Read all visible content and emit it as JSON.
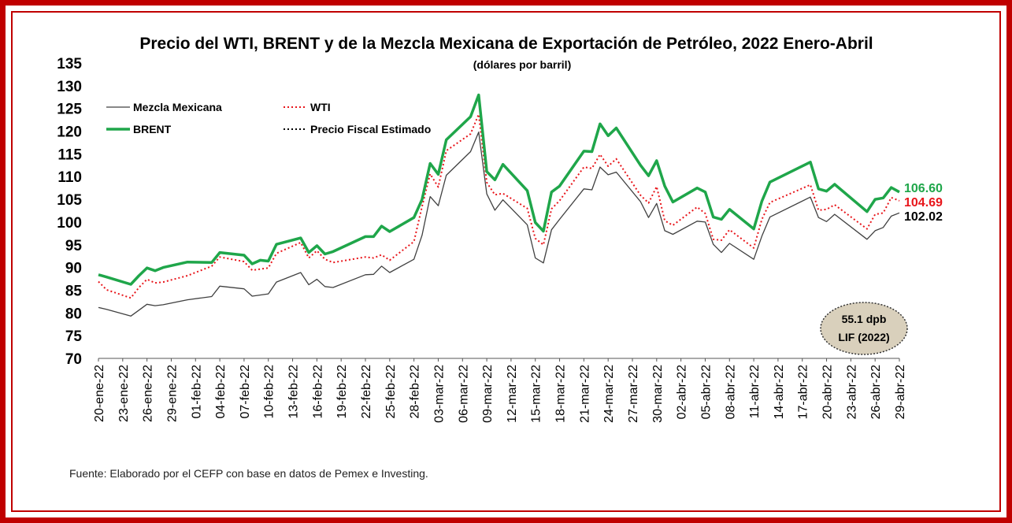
{
  "chart_data": {
    "type": "line",
    "title": "Precio del WTI, BRENT y de la Mezcla Mexicana de Exportación de Petróleo, 2022 Enero-Abril",
    "subtitle": "(dólares por barril)",
    "ylim": [
      70,
      135
    ],
    "yticks": [
      70,
      75,
      80,
      85,
      90,
      95,
      100,
      105,
      110,
      115,
      120,
      125,
      130,
      135
    ],
    "x_tick_labels": [
      "20-ene-22",
      "23-ene-22",
      "26-ene-22",
      "29-ene-22",
      "01-feb-22",
      "04-feb-22",
      "07-feb-22",
      "10-feb-22",
      "13-feb-22",
      "16-feb-22",
      "19-feb-22",
      "22-feb-22",
      "25-feb-22",
      "28-feb-22",
      "03-mar-22",
      "06-mar-22",
      "09-mar-22",
      "12-mar-22",
      "15-mar-22",
      "18-mar-22",
      "21-mar-22",
      "24-mar-22",
      "27-mar-22",
      "30-mar-22",
      "02-abr-22",
      "05-abr-22",
      "08-abr-22",
      "11-abr-22",
      "14-abr-22",
      "17-abr-22",
      "20-abr-22",
      "23-abr-22",
      "26-abr-22",
      "29-abr-22"
    ],
    "x_start": "2022-01-20",
    "x_end": "2022-04-29",
    "grid": false,
    "legend": "top-left",
    "series": [
      {
        "name": "Mezcla Mexicana",
        "color": "#404040",
        "style": "solid",
        "points": [
          [
            "2022-01-20",
            81.2
          ],
          [
            "2022-01-21",
            80.8
          ],
          [
            "2022-01-24",
            79.3
          ],
          [
            "2022-01-25",
            80.6
          ],
          [
            "2022-01-26",
            81.9
          ],
          [
            "2022-01-27",
            81.6
          ],
          [
            "2022-01-28",
            81.8
          ],
          [
            "2022-01-31",
            82.9
          ],
          [
            "2022-02-03",
            83.6
          ],
          [
            "2022-02-04",
            85.9
          ],
          [
            "2022-02-07",
            85.3
          ],
          [
            "2022-02-08",
            83.7
          ],
          [
            "2022-02-10",
            84.2
          ],
          [
            "2022-02-11",
            86.8
          ],
          [
            "2022-02-14",
            88.9
          ],
          [
            "2022-02-15",
            86.2
          ],
          [
            "2022-02-16",
            87.4
          ],
          [
            "2022-02-17",
            85.8
          ],
          [
            "2022-02-18",
            85.6
          ],
          [
            "2022-02-22",
            88.4
          ],
          [
            "2022-02-23",
            88.5
          ],
          [
            "2022-02-24",
            90.3
          ],
          [
            "2022-02-25",
            88.9
          ],
          [
            "2022-02-28",
            91.8
          ],
          [
            "2022-03-01",
            97.1
          ],
          [
            "2022-03-02",
            105.6
          ],
          [
            "2022-03-03",
            103.6
          ],
          [
            "2022-03-04",
            110.3
          ],
          [
            "2022-03-07",
            115.5
          ],
          [
            "2022-03-08",
            119.8
          ],
          [
            "2022-03-09",
            106.2
          ],
          [
            "2022-03-10",
            102.6
          ],
          [
            "2022-03-11",
            104.9
          ],
          [
            "2022-03-14",
            99.4
          ],
          [
            "2022-03-15",
            92.1
          ],
          [
            "2022-03-16",
            91.0
          ],
          [
            "2022-03-17",
            98.3
          ],
          [
            "2022-03-18",
            100.6
          ],
          [
            "2022-03-21",
            107.3
          ],
          [
            "2022-03-22",
            107.1
          ],
          [
            "2022-03-23",
            112.1
          ],
          [
            "2022-03-24",
            110.4
          ],
          [
            "2022-03-25",
            111.0
          ],
          [
            "2022-03-28",
            104.5
          ],
          [
            "2022-03-29",
            101.0
          ],
          [
            "2022-03-30",
            104.1
          ],
          [
            "2022-03-31",
            98.1
          ],
          [
            "2022-04-01",
            97.3
          ],
          [
            "2022-04-04",
            100.2
          ],
          [
            "2022-04-05",
            100.0
          ],
          [
            "2022-04-06",
            95.1
          ],
          [
            "2022-04-07",
            93.3
          ],
          [
            "2022-04-08",
            95.3
          ],
          [
            "2022-04-11",
            91.8
          ],
          [
            "2022-04-12",
            96.9
          ],
          [
            "2022-04-13",
            101.1
          ],
          [
            "2022-04-18",
            105.5
          ],
          [
            "2022-04-19",
            101.0
          ],
          [
            "2022-04-20",
            100.1
          ],
          [
            "2022-04-21",
            101.7
          ],
          [
            "2022-04-25",
            96.2
          ],
          [
            "2022-04-26",
            98.1
          ],
          [
            "2022-04-27",
            98.8
          ],
          [
            "2022-04-28",
            101.3
          ],
          [
            "2022-04-29",
            102.02
          ]
        ]
      },
      {
        "name": "WTI",
        "color": "#e8161b",
        "style": "dotted",
        "points": [
          [
            "2022-01-20",
            86.9
          ],
          [
            "2022-01-21",
            85.1
          ],
          [
            "2022-01-24",
            83.3
          ],
          [
            "2022-01-25",
            85.6
          ],
          [
            "2022-01-26",
            87.4
          ],
          [
            "2022-01-27",
            86.6
          ],
          [
            "2022-01-28",
            86.8
          ],
          [
            "2022-01-31",
            88.2
          ],
          [
            "2022-02-03",
            90.3
          ],
          [
            "2022-02-04",
            92.3
          ],
          [
            "2022-02-07",
            91.3
          ],
          [
            "2022-02-08",
            89.4
          ],
          [
            "2022-02-10",
            89.9
          ],
          [
            "2022-02-11",
            93.1
          ],
          [
            "2022-02-14",
            95.5
          ],
          [
            "2022-02-15",
            92.1
          ],
          [
            "2022-02-16",
            93.7
          ],
          [
            "2022-02-17",
            91.8
          ],
          [
            "2022-02-18",
            91.1
          ],
          [
            "2022-02-22",
            92.3
          ],
          [
            "2022-02-23",
            92.1
          ],
          [
            "2022-02-24",
            92.8
          ],
          [
            "2022-02-25",
            91.6
          ],
          [
            "2022-02-28",
            95.7
          ],
          [
            "2022-03-01",
            103.4
          ],
          [
            "2022-03-02",
            110.6
          ],
          [
            "2022-03-03",
            107.7
          ],
          [
            "2022-03-04",
            115.7
          ],
          [
            "2022-03-07",
            119.4
          ],
          [
            "2022-03-08",
            123.7
          ],
          [
            "2022-03-09",
            108.7
          ],
          [
            "2022-03-10",
            106.0
          ],
          [
            "2022-03-11",
            106.3
          ],
          [
            "2022-03-14",
            103.0
          ],
          [
            "2022-03-15",
            96.4
          ],
          [
            "2022-03-16",
            95.0
          ],
          [
            "2022-03-17",
            102.9
          ],
          [
            "2022-03-18",
            104.7
          ],
          [
            "2022-03-21",
            112.1
          ],
          [
            "2022-03-22",
            111.8
          ],
          [
            "2022-03-23",
            114.9
          ],
          [
            "2022-03-24",
            112.3
          ],
          [
            "2022-03-25",
            113.9
          ],
          [
            "2022-03-28",
            105.9
          ],
          [
            "2022-03-29",
            104.2
          ],
          [
            "2022-03-30",
            107.8
          ],
          [
            "2022-03-31",
            100.3
          ],
          [
            "2022-04-01",
            99.3
          ],
          [
            "2022-04-04",
            103.3
          ],
          [
            "2022-04-05",
            101.9
          ],
          [
            "2022-04-06",
            96.2
          ],
          [
            "2022-04-07",
            96.0
          ],
          [
            "2022-04-08",
            98.3
          ],
          [
            "2022-04-11",
            94.3
          ],
          [
            "2022-04-12",
            100.6
          ],
          [
            "2022-04-13",
            104.3
          ],
          [
            "2022-04-18",
            108.2
          ],
          [
            "2022-04-19",
            102.6
          ],
          [
            "2022-04-20",
            102.8
          ],
          [
            "2022-04-21",
            103.8
          ],
          [
            "2022-04-25",
            98.5
          ],
          [
            "2022-04-26",
            101.7
          ],
          [
            "2022-04-27",
            102.0
          ],
          [
            "2022-04-28",
            105.4
          ],
          [
            "2022-04-29",
            104.69
          ]
        ]
      },
      {
        "name": "BRENT",
        "color": "#1fa64a",
        "style": "solid-thick",
        "points": [
          [
            "2022-01-20",
            88.4
          ],
          [
            "2022-01-21",
            87.9
          ],
          [
            "2022-01-24",
            86.3
          ],
          [
            "2022-01-25",
            88.2
          ],
          [
            "2022-01-26",
            89.9
          ],
          [
            "2022-01-27",
            89.3
          ],
          [
            "2022-01-28",
            90.0
          ],
          [
            "2022-01-31",
            91.2
          ],
          [
            "2022-02-03",
            91.1
          ],
          [
            "2022-02-04",
            93.3
          ],
          [
            "2022-02-07",
            92.7
          ],
          [
            "2022-02-08",
            90.8
          ],
          [
            "2022-02-09",
            91.6
          ],
          [
            "2022-02-10",
            91.4
          ],
          [
            "2022-02-11",
            95.1
          ],
          [
            "2022-02-14",
            96.5
          ],
          [
            "2022-02-15",
            93.3
          ],
          [
            "2022-02-16",
            94.8
          ],
          [
            "2022-02-17",
            92.97
          ],
          [
            "2022-02-18",
            93.5
          ],
          [
            "2022-02-22",
            96.8
          ],
          [
            "2022-02-23",
            96.8
          ],
          [
            "2022-02-24",
            99.1
          ],
          [
            "2022-02-25",
            97.9
          ],
          [
            "2022-02-28",
            100.99
          ],
          [
            "2022-03-01",
            104.97
          ],
          [
            "2022-03-02",
            112.9
          ],
          [
            "2022-03-03",
            110.5
          ],
          [
            "2022-03-04",
            118.1
          ],
          [
            "2022-03-07",
            123.2
          ],
          [
            "2022-03-08",
            127.98
          ],
          [
            "2022-03-09",
            111.1
          ],
          [
            "2022-03-10",
            109.3
          ],
          [
            "2022-03-11",
            112.7
          ],
          [
            "2022-03-14",
            106.9
          ],
          [
            "2022-03-15",
            99.9
          ],
          [
            "2022-03-16",
            98.0
          ],
          [
            "2022-03-17",
            106.6
          ],
          [
            "2022-03-18",
            107.9
          ],
          [
            "2022-03-21",
            115.6
          ],
          [
            "2022-03-22",
            115.5
          ],
          [
            "2022-03-23",
            121.6
          ],
          [
            "2022-03-24",
            119.0
          ],
          [
            "2022-03-25",
            120.7
          ],
          [
            "2022-03-28",
            112.5
          ],
          [
            "2022-03-29",
            110.2
          ],
          [
            "2022-03-30",
            113.5
          ],
          [
            "2022-03-31",
            107.9
          ],
          [
            "2022-04-01",
            104.4
          ],
          [
            "2022-04-04",
            107.5
          ],
          [
            "2022-04-05",
            106.6
          ],
          [
            "2022-04-06",
            101.1
          ],
          [
            "2022-04-07",
            100.6
          ],
          [
            "2022-04-08",
            102.8
          ],
          [
            "2022-04-11",
            98.5
          ],
          [
            "2022-04-12",
            104.6
          ],
          [
            "2022-04-13",
            108.8
          ],
          [
            "2022-04-18",
            113.2
          ],
          [
            "2022-04-19",
            107.3
          ],
          [
            "2022-04-20",
            106.8
          ],
          [
            "2022-04-21",
            108.3
          ],
          [
            "2022-04-25",
            102.3
          ],
          [
            "2022-04-26",
            104.99
          ],
          [
            "2022-04-27",
            105.3
          ],
          [
            "2022-04-28",
            107.6
          ],
          [
            "2022-04-29",
            106.6
          ]
        ]
      },
      {
        "name": "Precio Fiscal Estimado",
        "color": "#000000",
        "style": "dotted",
        "points": []
      }
    ],
    "end_labels": [
      {
        "text": "106.60",
        "color": "#1fa64a",
        "value": 106.6
      },
      {
        "text": "104.69",
        "color": "#e8161b",
        "value": 104.69
      },
      {
        "text": "102.02",
        "color": "#000000",
        "value": 102.02
      }
    ],
    "annotation": {
      "line1": "55.1 dpb",
      "line2": "LIF (2022)"
    }
  },
  "source_note": "Fuente: Elaborado por el CEFP con base en datos de Pemex e Investing."
}
